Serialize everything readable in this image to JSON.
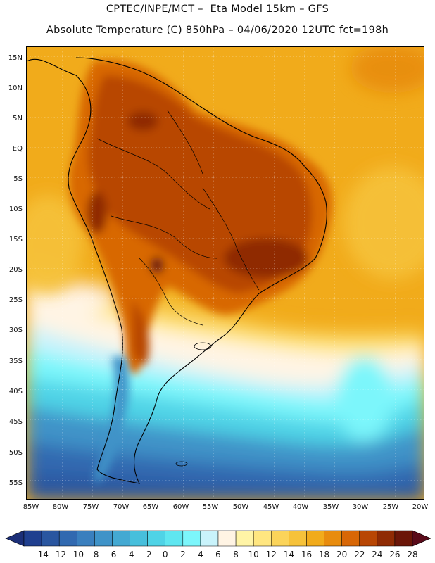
{
  "header": {
    "title_line1": "CPTEC/INPE/MCT –  Eta Model 15km – GFS",
    "title_line2": "Absolute Temperature (C) 850hPa – 04/06/2020 12UTC fct=198h"
  },
  "map": {
    "region": "South America",
    "lat_labels": [
      "15N",
      "10N",
      "5N",
      "EQ",
      "5S",
      "10S",
      "15S",
      "20S",
      "25S",
      "30S",
      "35S",
      "40S",
      "45S",
      "50S",
      "55S"
    ],
    "lon_labels": [
      "85W",
      "80W",
      "75W",
      "70W",
      "65W",
      "60W",
      "55W",
      "50W",
      "45W",
      "40W",
      "35W",
      "30W",
      "25W",
      "20W"
    ]
  },
  "colorbar": {
    "labels": [
      "-14",
      "-12",
      "-10",
      "-8",
      "-6",
      "-4",
      "-2",
      "0",
      "2",
      "4",
      "6",
      "8",
      "10",
      "12",
      "14",
      "16",
      "18",
      "20",
      "22",
      "24",
      "26",
      "28"
    ],
    "colors": [
      "#1f3f8f",
      "#2a56a0",
      "#3169b0",
      "#3a7fbe",
      "#3f93c8",
      "#44a9d2",
      "#47bfdc",
      "#4fd3e6",
      "#5fe6f0",
      "#7cf6fb",
      "#c9f3fb",
      "#fff4e4",
      "#fff4a6",
      "#ffe680",
      "#fbd45a",
      "#f6c23a",
      "#f1ab1b",
      "#e88c0e",
      "#d86706",
      "#b84604",
      "#8f2b04",
      "#6b1608"
    ],
    "under_color": "#1c2f78",
    "over_color": "#5a0b1a"
  }
}
